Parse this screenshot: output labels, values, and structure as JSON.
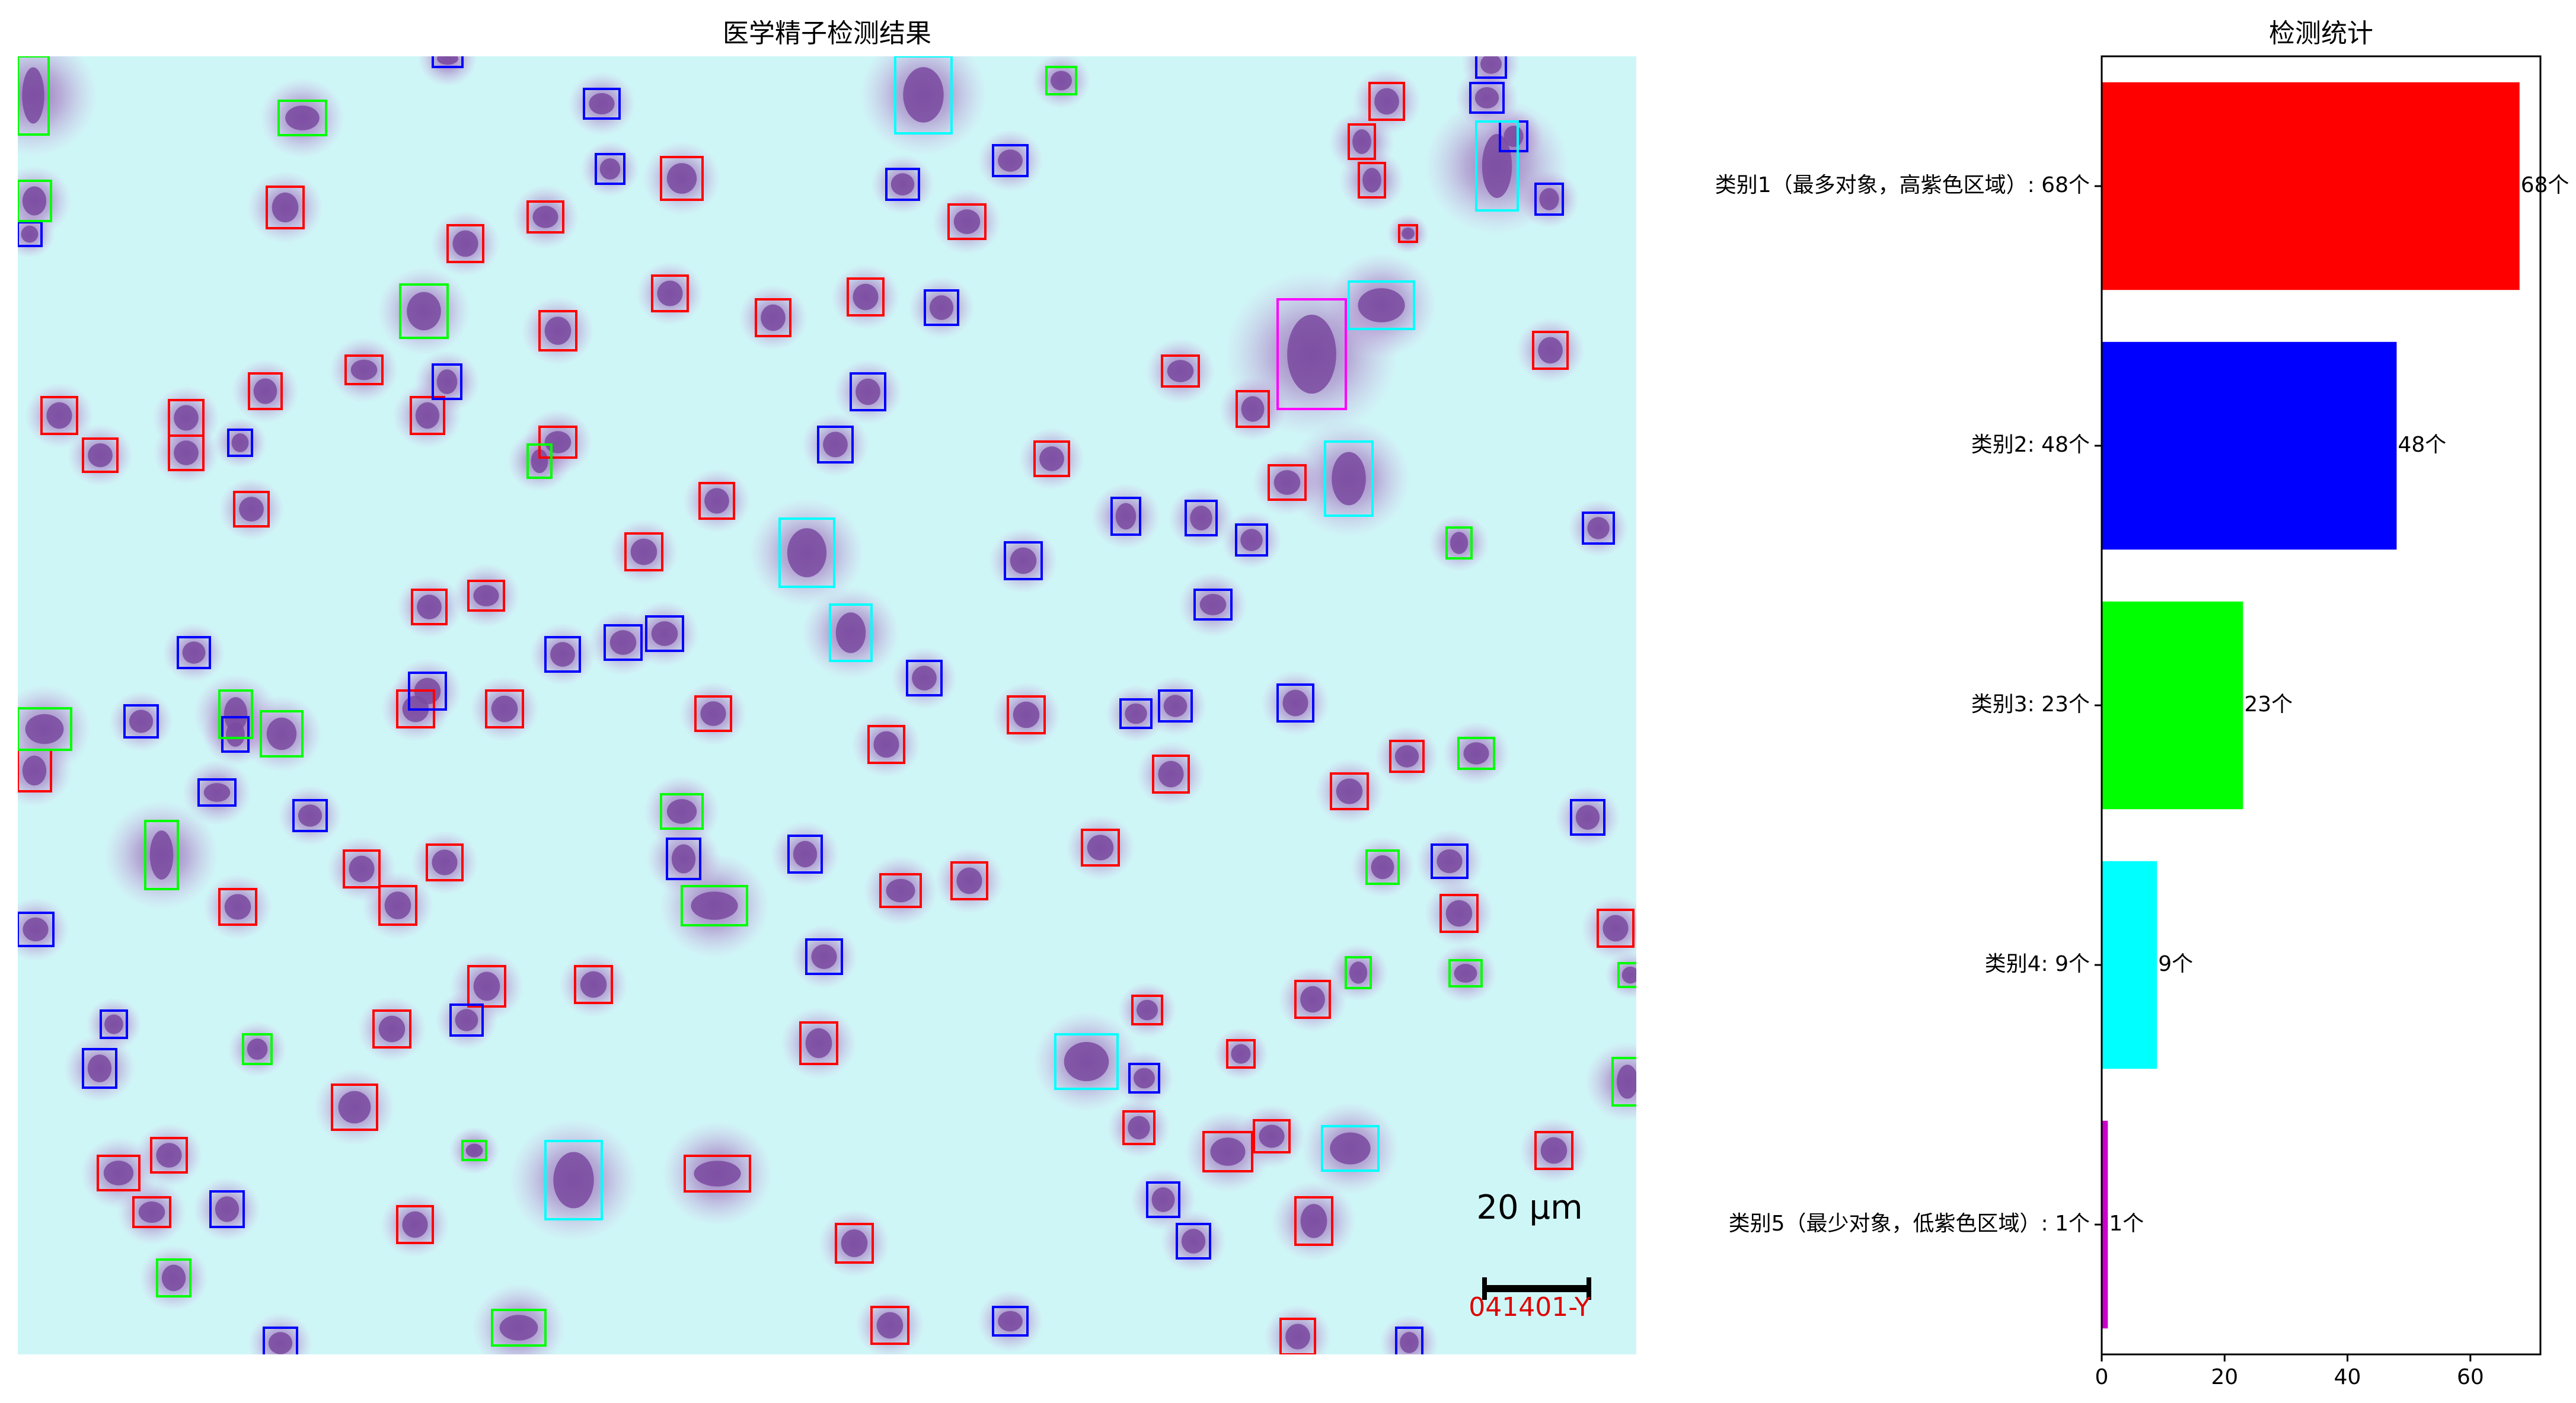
{
  "micrograph": {
    "title": "医学精子检测结果",
    "scale_bar_label": "20 μm",
    "sample_id": "041401-Y",
    "colors": {
      "background": "#cff6f7",
      "cell": "#7a4aa0",
      "halo": "#b98bcc",
      "class1": "#ff0000",
      "class2": "#0000ff",
      "class3": "#00ff00",
      "class4": "#00ffff",
      "class5": "#ff00ff"
    }
  },
  "chart": {
    "title": "检测统计"
  },
  "chart_data": {
    "type": "bar",
    "orientation": "horizontal",
    "title": "检测统计",
    "categories": [
      "类别1（最多对象，高紫色区域）: 68个",
      "类别2: 48个",
      "类别3: 23个",
      "类别4: 9个",
      "类别5（最少对象，低紫色区域）: 1个"
    ],
    "values": [
      68,
      48,
      23,
      9,
      1
    ],
    "value_labels": [
      "68个",
      "48个",
      "23个",
      "9个",
      "1个"
    ],
    "colors": [
      "#ff0000",
      "#0000ff",
      "#00ff00",
      "#00ffff",
      "#cc00cc"
    ],
    "xlim": [
      0,
      71.4
    ],
    "xticks": [
      0,
      20,
      40,
      60
    ],
    "xlabel": "",
    "ylabel": "",
    "grid": false
  }
}
